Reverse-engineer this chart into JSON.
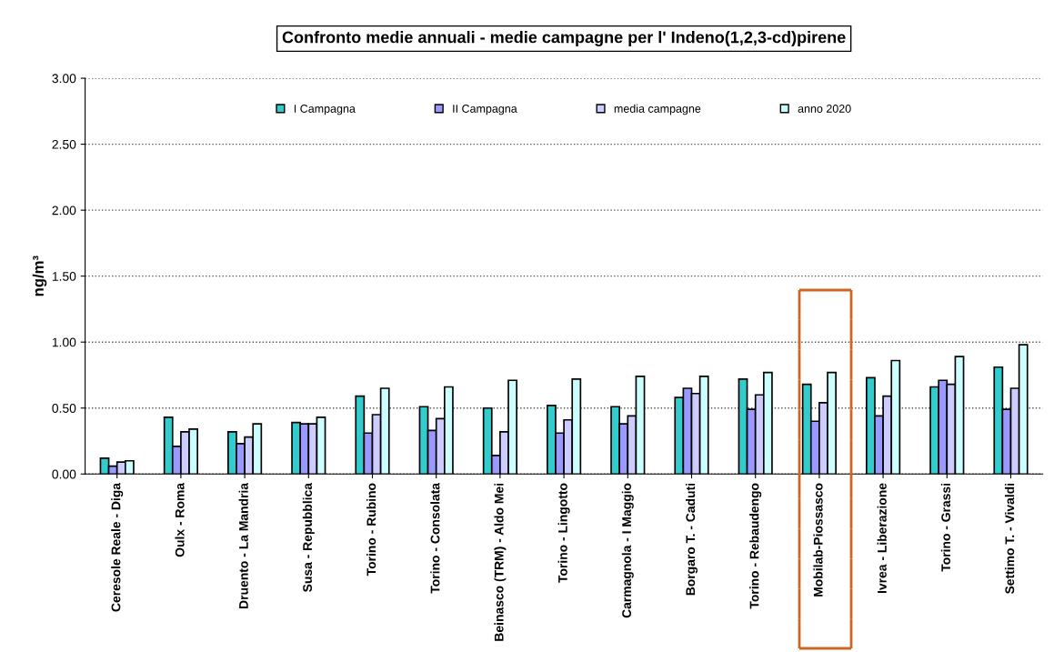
{
  "chart_data": {
    "type": "bar",
    "title": "Confronto medie annuali - medie campagne per l' Indeno(1,2,3-cd)pirene",
    "ylabel": "ng/m³",
    "categories": [
      "Ceresole Reale - Diga",
      "Oulx - Roma",
      "Druento - La Mandria",
      "Susa - Repubblica",
      "Torino - Rubino",
      "Torino - Consolata",
      "Beinasco (TRM) - Aldo Mei",
      "Torino - Lingotto",
      "Carmagnola - I Maggio",
      "Borgaro T. - Caduti",
      "Torino - Rebaudengo",
      "Mobilab-Piossasco",
      "Ivrea - Liberazione",
      "Torino - Grassi",
      "Settimo T. - Vivaldi"
    ],
    "series": [
      {
        "name": "I Campagna",
        "color": "#33cccc",
        "values": [
          0.12,
          0.43,
          0.32,
          0.39,
          0.59,
          0.51,
          0.5,
          0.52,
          0.51,
          0.58,
          0.72,
          0.68,
          0.73,
          0.66,
          0.81
        ]
      },
      {
        "name": "II Campagna",
        "color": "#9999ff",
        "values": [
          0.06,
          0.21,
          0.23,
          0.38,
          0.31,
          0.33,
          0.14,
          0.31,
          0.38,
          0.65,
          0.49,
          0.4,
          0.44,
          0.71,
          0.49
        ]
      },
      {
        "name": "media campagne",
        "color": "#ccccff",
        "values": [
          0.09,
          0.32,
          0.28,
          0.38,
          0.45,
          0.42,
          0.32,
          0.41,
          0.44,
          0.61,
          0.6,
          0.54,
          0.59,
          0.68,
          0.65
        ]
      },
      {
        "name": "anno 2020",
        "color": "#ccffff",
        "values": [
          0.1,
          0.34,
          0.38,
          0.43,
          0.65,
          0.66,
          0.71,
          0.72,
          0.74,
          0.74,
          0.77,
          0.77,
          0.86,
          0.89,
          0.98
        ]
      }
    ],
    "ylim": [
      0,
      3
    ],
    "yticks": [
      {
        "value": 0,
        "label": "0.00"
      },
      {
        "value": 0.5,
        "label": "0.50"
      },
      {
        "value": 1,
        "label": "1.00"
      },
      {
        "value": 1.5,
        "label": "1.50"
      },
      {
        "value": 2,
        "label": "2.00"
      },
      {
        "value": 2.5,
        "label": "2.50"
      },
      {
        "value": 3,
        "label": "3.00"
      }
    ],
    "grid": "y",
    "legend": "top"
  }
}
